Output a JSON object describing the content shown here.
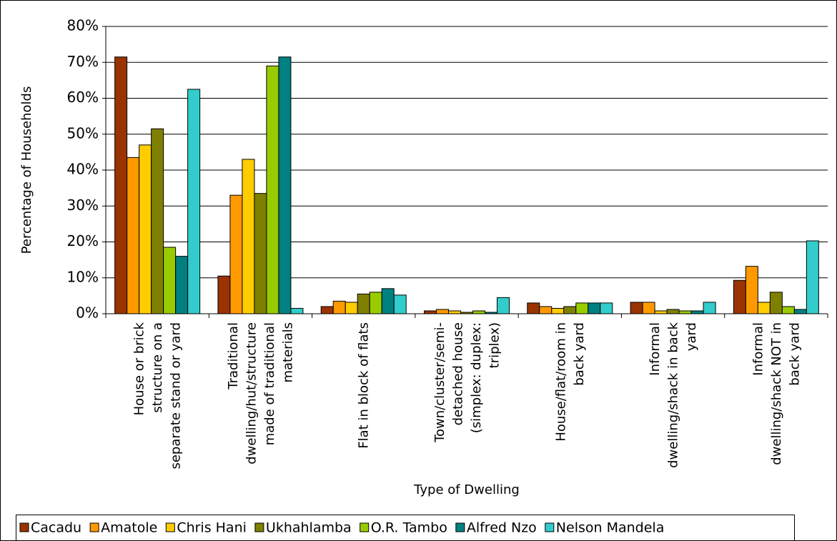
{
  "chart_data": {
    "type": "bar",
    "x_label": "Type of Dwelling",
    "y_label": "Percentage of Households",
    "categories": [
      "House or brick structure on a separate stand or yard",
      "Traditional dwelling/hut/structure made of traditional materials",
      "Flat in block of flats",
      "Town/cluster/semi-detached house (simplex: duplex: triplex)",
      "House/flat/room in back yard",
      "Informal dwelling/shack in back yard",
      "Informal dwelling/shack NOT in back yard"
    ],
    "series": [
      {
        "name": "Cacadu",
        "color": "#993300",
        "values": [
          71.5,
          10.5,
          2,
          0.8,
          3,
          3.2,
          9.3
        ]
      },
      {
        "name": "Amatole",
        "color": "#ff9900",
        "values": [
          43.5,
          33,
          3.5,
          1.2,
          2,
          3.2,
          13.2
        ]
      },
      {
        "name": "Chris Hani",
        "color": "#ffcc00",
        "values": [
          47,
          43,
          3.2,
          0.8,
          1.5,
          0.8,
          3.2
        ]
      },
      {
        "name": "Ukhahlamba",
        "color": "#808000",
        "values": [
          51.5,
          33.5,
          5.5,
          0.4,
          2,
          1.2,
          6
        ]
      },
      {
        "name": "O.R. Tambo",
        "color": "#99cc00",
        "values": [
          18.5,
          69,
          6,
          0.8,
          3,
          0.8,
          2
        ]
      },
      {
        "name": "Alfred Nzo",
        "color": "#008080",
        "values": [
          16,
          71.5,
          7,
          0.4,
          3,
          0.8,
          1.2
        ]
      },
      {
        "name": "Nelson Mandela",
        "color": "#33cccc",
        "values": [
          62.5,
          1.5,
          5.2,
          4.5,
          3,
          3.2,
          20.3
        ]
      }
    ],
    "ylim": [
      0,
      80
    ],
    "yticks": [
      {
        "value": 0,
        "label": "0%"
      },
      {
        "value": 10,
        "label": "10%"
      },
      {
        "value": 20,
        "label": "20%"
      },
      {
        "value": 30,
        "label": "30%"
      },
      {
        "value": 40,
        "label": "40%"
      },
      {
        "value": 50,
        "label": "50%"
      },
      {
        "value": 60,
        "label": "60%"
      },
      {
        "value": 70,
        "label": "70%"
      },
      {
        "value": 80,
        "label": "80%"
      }
    ],
    "grid": true,
    "legend": "bottom"
  }
}
